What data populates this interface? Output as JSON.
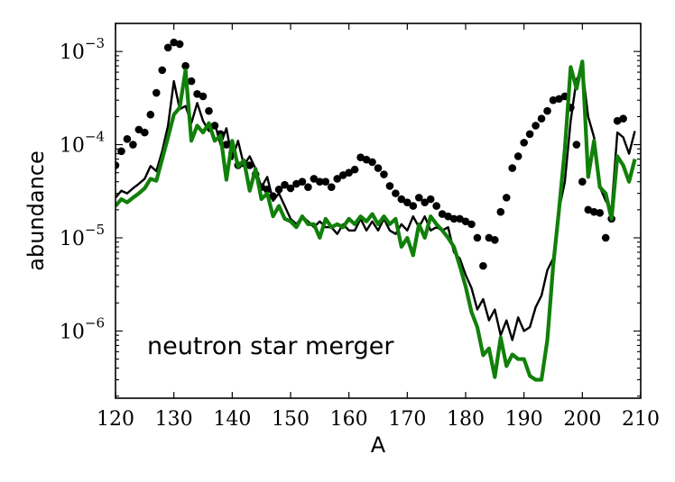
{
  "chart_data": {
    "type": "line",
    "xlabel": "A",
    "ylabel": "abundance",
    "xlim": [
      120,
      210
    ],
    "ylim": [
      1.9e-07,
      0.002
    ],
    "yscale": "log",
    "grid": false,
    "legend": "none",
    "annotation": "neutron star merger",
    "x_ticks": [
      120,
      130,
      140,
      150,
      160,
      170,
      180,
      190,
      200,
      210
    ],
    "y_ticks": [
      {
        "value": 1e-06,
        "base": "10",
        "exp": "−6"
      },
      {
        "value": 1e-05,
        "base": "10",
        "exp": "−5"
      },
      {
        "value": 0.0001,
        "base": "10",
        "exp": "−4"
      },
      {
        "value": 0.001,
        "base": "10",
        "exp": "−3"
      }
    ],
    "colors": {
      "green": "#11800a",
      "black": "#000000"
    },
    "series": [
      {
        "style": "points",
        "color": "#000000",
        "x": [
          120,
          121,
          122,
          123,
          124,
          125,
          126,
          127,
          128,
          129,
          130,
          131,
          132,
          133,
          134,
          135,
          136,
          137,
          138,
          139,
          140,
          141,
          142,
          143,
          144,
          145,
          146,
          147,
          148,
          149,
          150,
          151,
          152,
          153,
          154,
          155,
          156,
          157,
          158,
          159,
          160,
          161,
          162,
          163,
          164,
          165,
          166,
          167,
          168,
          169,
          170,
          171,
          172,
          173,
          174,
          175,
          176,
          177,
          178,
          179,
          180,
          181,
          182,
          183,
          184,
          185,
          186,
          187,
          188,
          189,
          190,
          191,
          192,
          193,
          194,
          195,
          196,
          197,
          198,
          199,
          200,
          201,
          202,
          203,
          204,
          205,
          206,
          207
        ],
        "y": [
          6e-05,
          8.5e-05,
          0.000115,
          0.0001,
          0.000145,
          0.000135,
          0.00021,
          0.00036,
          0.00063,
          0.0011,
          0.00125,
          0.0012,
          0.0007,
          0.00048,
          0.00035,
          0.00033,
          0.00023,
          0.00016,
          0.00013,
          0.0001,
          8e-05,
          6e-05,
          6.3e-05,
          6e-05,
          4.8e-05,
          3.5e-05,
          3.3e-05,
          2.8e-05,
          3.3e-05,
          3.7e-05,
          3.4e-05,
          3.8e-05,
          4e-05,
          3.5e-05,
          4.3e-05,
          4e-05,
          4e-05,
          3.5e-05,
          4.3e-05,
          4.7e-05,
          5e-05,
          5.4e-05,
          7.3e-05,
          6.9e-05,
          6.5e-05,
          5.6e-05,
          4.8e-05,
          3.6e-05,
          3e-05,
          2.6e-05,
          2.4e-05,
          2.2e-05,
          2.7e-05,
          2.4e-05,
          2.6e-05,
          2.2e-05,
          1.8e-05,
          1.7e-05,
          1.6e-05,
          1.6e-05,
          1.5e-05,
          1.4e-05,
          1e-05,
          5e-06,
          1e-05,
          9.5e-06,
          1.9e-05,
          2.7e-05,
          5.6e-05,
          7.5e-05,
          0.000105,
          0.00013,
          0.00016,
          0.00019,
          0.00023,
          0.0003,
          0.00031,
          0.00033,
          0.00025,
          0.0001,
          4e-05,
          2e-05,
          1.9e-05,
          1.85e-05,
          1e-05,
          1.6e-05,
          0.00018,
          0.00019
        ]
      },
      {
        "style": "line",
        "color": "#000000",
        "x": [
          120,
          121,
          122,
          123,
          124,
          125,
          126,
          127,
          128,
          129,
          130,
          131,
          132,
          133,
          134,
          135,
          136,
          137,
          138,
          139,
          140,
          141,
          142,
          143,
          144,
          145,
          146,
          147,
          148,
          149,
          150,
          151,
          152,
          153,
          154,
          155,
          156,
          157,
          158,
          159,
          160,
          161,
          162,
          163,
          164,
          165,
          166,
          167,
          168,
          169,
          170,
          171,
          172,
          173,
          174,
          175,
          176,
          177,
          178,
          179,
          180,
          181,
          182,
          183,
          184,
          185,
          186,
          187,
          188,
          189,
          190,
          191,
          192,
          193,
          194,
          195,
          196,
          197,
          198,
          199,
          200,
          201,
          202,
          203,
          204,
          205,
          206,
          207,
          208,
          209
        ],
        "y": [
          2.7e-05,
          3.2e-05,
          3e-05,
          3.4e-05,
          3.8e-05,
          4.3e-05,
          5.9e-05,
          5.2e-05,
          8.5e-05,
          0.00016,
          0.00048,
          0.00024,
          0.00026,
          0.00017,
          0.00028,
          0.00018,
          0.00014,
          0.00017,
          0.0001,
          0.00015,
          7e-05,
          0.00011,
          6e-05,
          7.5e-05,
          5.5e-05,
          3.5e-05,
          4.5e-05,
          2.5e-05,
          3e-05,
          2.2e-05,
          1.6e-05,
          1.4e-05,
          1.7e-05,
          1.5e-05,
          1.3e-05,
          1.5e-05,
          1.3e-05,
          1.3e-05,
          1.1e-05,
          1.4e-05,
          1.2e-05,
          1.2e-05,
          1.6e-05,
          1.2e-05,
          1.5e-05,
          1.2e-05,
          1.6e-05,
          1.2e-05,
          1.1e-05,
          1.4e-05,
          1.2e-05,
          1.7e-05,
          1.3e-05,
          1.7e-05,
          1.2e-05,
          1.3e-05,
          1.2e-05,
          1.3e-05,
          7e-06,
          6e-06,
          4e-06,
          2.9e-06,
          1.7e-06,
          2.2e-06,
          1.3e-06,
          1.7e-06,
          9e-07,
          1.3e-06,
          8e-07,
          1.4e-06,
          1e-06,
          1.1e-06,
          1.8e-06,
          2.4e-06,
          4.5e-06,
          6e-06,
          2e-05,
          4e-05,
          0.00018,
          0.0005,
          0.00065,
          0.0002,
          0.00012,
          3.5e-05,
          2.5e-05,
          2e-05,
          0.000135,
          0.00012,
          8e-05,
          0.00014
        ]
      },
      {
        "style": "line",
        "color": "#11800a",
        "x": [
          120,
          121,
          122,
          123,
          124,
          125,
          126,
          127,
          128,
          129,
          130,
          131,
          132,
          133,
          134,
          135,
          136,
          137,
          138,
          139,
          140,
          141,
          142,
          143,
          144,
          145,
          146,
          147,
          148,
          149,
          150,
          151,
          152,
          153,
          154,
          155,
          156,
          157,
          158,
          159,
          160,
          161,
          162,
          163,
          164,
          165,
          166,
          167,
          168,
          169,
          170,
          171,
          172,
          173,
          174,
          175,
          176,
          177,
          178,
          179,
          180,
          181,
          182,
          183,
          184,
          185,
          186,
          187,
          188,
          189,
          190,
          191,
          192,
          193,
          194,
          195,
          196,
          197,
          198,
          199,
          200,
          201,
          202,
          203,
          204,
          205,
          206,
          207,
          208,
          209
        ],
        "y": [
          2.2e-05,
          2.6e-05,
          2.4e-05,
          2.7e-05,
          3e-05,
          3.4e-05,
          4.3e-05,
          4.1e-05,
          7e-05,
          0.00012,
          0.00021,
          0.00025,
          0.00063,
          0.00011,
          0.00016,
          0.000135,
          0.00017,
          0.00011,
          0.000125,
          4.2e-05,
          0.00011,
          5.8e-05,
          6.8e-05,
          3.2e-05,
          5.5e-05,
          2.6e-05,
          3e-05,
          1.7e-05,
          2.2e-05,
          1.6e-05,
          1.5e-05,
          1.3e-05,
          1.7e-05,
          1.4e-05,
          1.4e-05,
          1e-05,
          1.6e-05,
          1.3e-05,
          1.4e-05,
          1.3e-05,
          1.6e-05,
          1.4e-05,
          1.7e-05,
          1.5e-05,
          1.8e-05,
          1.4e-05,
          1.7e-05,
          1.4e-05,
          1.6e-05,
          8e-06,
          1e-05,
          6.5e-06,
          1.4e-05,
          1e-05,
          1.7e-05,
          1.4e-05,
          1.2e-05,
          1e-05,
          8e-06,
          5e-06,
          3e-06,
          1.6e-06,
          1.1e-06,
          5.5e-07,
          6.5e-07,
          3.2e-07,
          8.5e-07,
          4.2e-07,
          5.6e-07,
          5e-07,
          5e-07,
          3.3e-07,
          3e-07,
          3e-07,
          8e-07,
          5e-06,
          2e-05,
          9e-05,
          0.00068,
          0.0004,
          0.00078,
          4.5e-05,
          0.00011,
          3.5e-05,
          3e-05,
          1.6e-05,
          7.5e-05,
          6e-05,
          4e-05,
          7e-05
        ]
      }
    ]
  }
}
